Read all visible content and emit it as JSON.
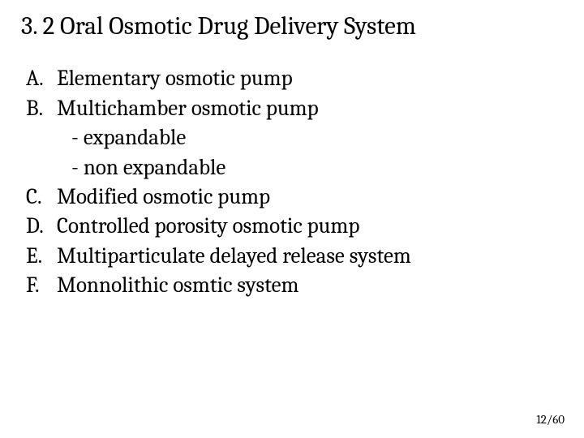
{
  "title": "3. 2 Oral Osmotic Drug Delivery System",
  "items": [
    {
      "marker": "A.",
      "text": "Elementary osmotic pump"
    },
    {
      "marker": "B.",
      "text": "Multichamber osmotic pump"
    }
  ],
  "subitems": [
    {
      "text": "-  expandable"
    },
    {
      "text": "-  non expandable"
    }
  ],
  "items2": [
    {
      "marker": "C.",
      "text": " Modified osmotic pump"
    },
    {
      "marker": "D.",
      "text": " Controlled porosity osmotic pump"
    },
    {
      "marker": "E.",
      "text": "  Multiparticulate delayed release system"
    },
    {
      "marker": "F.",
      "text": "   Monnolithic osmtic system"
    }
  ],
  "pageNumber": "12/60",
  "colors": {
    "background": "#ffffff",
    "text": "#000000"
  },
  "typography": {
    "title_fontsize": 31,
    "body_fontsize": 27,
    "pagenum_fontsize": 15,
    "font_family": "Cambria"
  }
}
